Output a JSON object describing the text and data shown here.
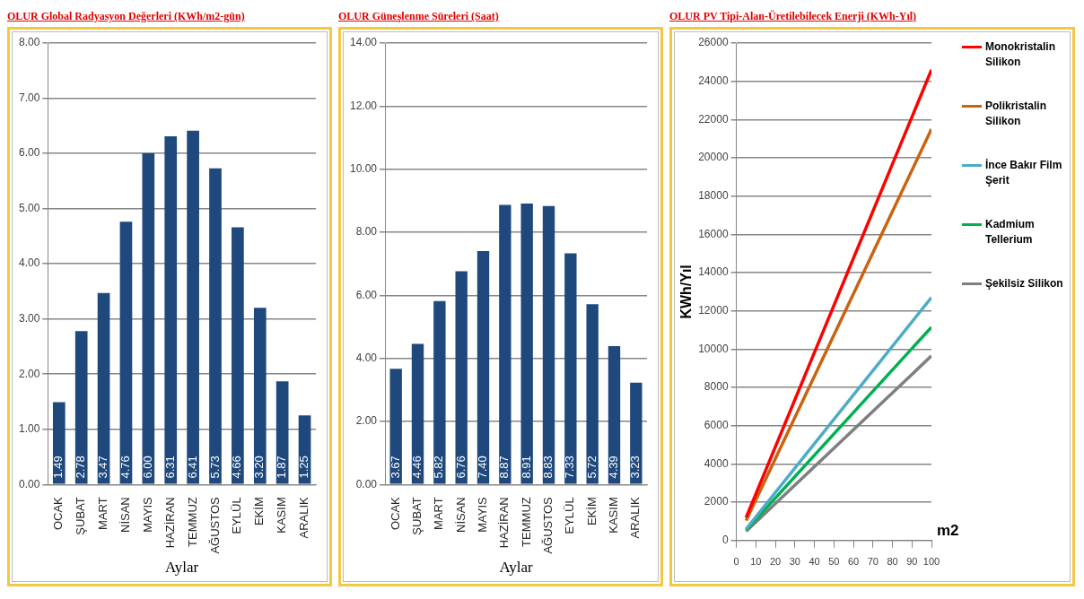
{
  "chart_data": [
    {
      "type": "bar",
      "title": "OLUR Global Radyasyon Değerleri (KWh/m2-gün)",
      "xlabel": "Aylar",
      "categories": [
        "OCAK",
        "ŞUBAT",
        "MART",
        "NİSAN",
        "MAYIS",
        "HAZİRAN",
        "TEMMUZ",
        "AĞUSTOS",
        "EYLÜL",
        "EKİM",
        "KASIM",
        "ARALIK"
      ],
      "values": [
        1.49,
        2.78,
        3.47,
        4.76,
        6.0,
        6.31,
        6.41,
        5.73,
        4.66,
        3.2,
        1.87,
        1.25
      ],
      "value_labels": [
        "1.49",
        "2.78",
        "3.47",
        "4.76",
        "6.00",
        "6.31",
        "6.41",
        "5.73",
        "4.66",
        "3.20",
        "1.87",
        "1.25"
      ],
      "color": "#1f497d",
      "ylim": [
        0,
        8
      ],
      "yticks": [
        {
          "value": 0,
          "label": "0.00"
        },
        {
          "value": 1,
          "label": "1.00"
        },
        {
          "value": 2,
          "label": "2.00"
        },
        {
          "value": 3,
          "label": "3.00"
        },
        {
          "value": 4,
          "label": "4.00"
        },
        {
          "value": 5,
          "label": "5.00"
        },
        {
          "value": 6,
          "label": "6.00"
        },
        {
          "value": 7,
          "label": "7.00"
        },
        {
          "value": 8,
          "label": "8.00"
        }
      ],
      "grid": "y",
      "legend": false
    },
    {
      "type": "bar",
      "title": "OLUR Güneşlenme Süreleri (Saat)",
      "xlabel": "Aylar",
      "categories": [
        "OCAK",
        "ŞUBAT",
        "MART",
        "NİSAN",
        "MAYIS",
        "HAZİRAN",
        "TEMMUZ",
        "AĞUSTOS",
        "EYLÜL",
        "EKİM",
        "KASIM",
        "ARALIK"
      ],
      "values": [
        3.67,
        4.46,
        5.82,
        6.76,
        7.4,
        8.87,
        8.91,
        8.83,
        7.33,
        5.72,
        4.39,
        3.23
      ],
      "value_labels": [
        "3.67",
        "4.46",
        "5.82",
        "6.76",
        "7.40",
        "8.87",
        "8.91",
        "8.83",
        "7.33",
        "5.72",
        "4.39",
        "3.23"
      ],
      "color": "#1f497d",
      "ylim": [
        0,
        14
      ],
      "yticks": [
        {
          "value": 0,
          "label": "0.00"
        },
        {
          "value": 2,
          "label": "2.00"
        },
        {
          "value": 4,
          "label": "4.00"
        },
        {
          "value": 6,
          "label": "6.00"
        },
        {
          "value": 8,
          "label": "8.00"
        },
        {
          "value": 10,
          "label": "10.00"
        },
        {
          "value": 12,
          "label": "12.00"
        },
        {
          "value": 14,
          "label": "14.00"
        }
      ],
      "grid": "y",
      "legend": false
    },
    {
      "type": "line",
      "title": "OLUR PV Tipi-Alan-Üretilebilecek Enerji (KWh-Yıl)",
      "xlabel": "m2",
      "ylabel": "KWh/Yıl",
      "x": [
        5,
        100
      ],
      "series": [
        {
          "name": "Monokristalin Silikon",
          "color": "#ff0000",
          "values": [
            1200,
            24600
          ]
        },
        {
          "name": "Polikristalin Silikon",
          "color": "#c8640f",
          "values": [
            1050,
            21500
          ]
        },
        {
          "name": "İnce Bakır Film Şerit",
          "color": "#4bacc6",
          "values": [
            600,
            12700
          ]
        },
        {
          "name": "Kadmium Tellerium",
          "color": "#00b050",
          "values": [
            550,
            11150
          ]
        },
        {
          "name": "Şekilsiz Silikon",
          "color": "#7f7f7f",
          "values": [
            480,
            9650
          ]
        }
      ],
      "xlim": [
        0,
        100
      ],
      "xticks": [
        0,
        10,
        20,
        30,
        40,
        50,
        60,
        70,
        80,
        90,
        100
      ],
      "ylim": [
        0,
        26000
      ],
      "yticks": [
        0,
        2000,
        4000,
        6000,
        8000,
        10000,
        12000,
        14000,
        16000,
        18000,
        20000,
        22000,
        24000,
        26000
      ],
      "grid": "y",
      "legend": "right",
      "marker": "none",
      "line_style": "solid"
    }
  ]
}
